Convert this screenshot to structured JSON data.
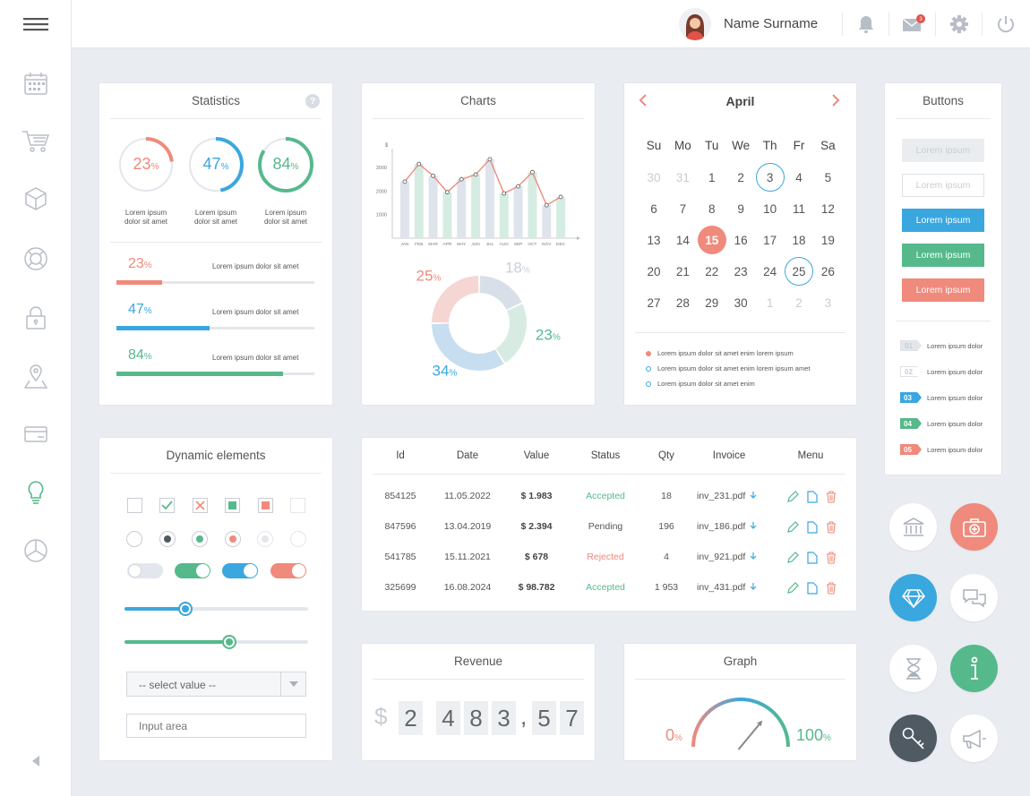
{
  "header": {
    "user_name": "Name Surname",
    "mail_count": "3"
  },
  "statistics": {
    "title": "Statistics",
    "help": "?",
    "rings": [
      {
        "value": "23",
        "unit": "%",
        "fraction": 0.23,
        "caption": "Lorem ipsum\ndolor sit amet",
        "color": "#ef8a7c"
      },
      {
        "value": "47",
        "unit": "%",
        "fraction": 0.47,
        "caption": "Lorem ipsum\ndolor sit amet",
        "color": "#3aa7df"
      },
      {
        "value": "84",
        "unit": "%",
        "fraction": 0.84,
        "caption": "Lorem ipsum\ndolor sit amet",
        "color": "#56b98c"
      }
    ],
    "bars": [
      {
        "value": "23",
        "unit": "%",
        "fraction": 0.23,
        "label": "Lorem ipsum dolor sit amet",
        "color": "#ef8a7c"
      },
      {
        "value": "47",
        "unit": "%",
        "fraction": 0.47,
        "label": "Lorem ipsum dolor sit amet",
        "color": "#3aa7df"
      },
      {
        "value": "84",
        "unit": "%",
        "fraction": 0.84,
        "label": "Lorem ipsum dolor sit amet",
        "color": "#56b98c"
      }
    ]
  },
  "charts": {
    "title": "Charts"
  },
  "chart_data": [
    {
      "type": "bar",
      "ylabel": "$",
      "categories": [
        "JAN",
        "FEB",
        "MAR",
        "APR",
        "MAY",
        "JUN",
        "JUL",
        "AUG",
        "SEP",
        "OCT",
        "NOV",
        "DEC"
      ],
      "yticks": [
        "1000",
        "2000",
        "3000"
      ],
      "ylim": [
        0,
        3800
      ],
      "series": [
        {
          "values": [
            2400,
            3150,
            2650,
            1950,
            2500,
            2700,
            3350,
            1900,
            2200,
            2800,
            1400,
            1750
          ]
        }
      ],
      "bar_colors": [
        "#dfe4ec",
        "#d5ece2",
        "#dfe4ec",
        "#d5ece2",
        "#dfe4ec",
        "#d5ece2",
        "#dfe4ec",
        "#d5ece2",
        "#dfe4ec",
        "#d5ece2",
        "#dfe4ec",
        "#d5ece2"
      ],
      "line_color": "#ef8a7c"
    },
    {
      "type": "pie",
      "slices": [
        {
          "value": 18,
          "color": "#d9dfe8",
          "text_color": "#c8d0db"
        },
        {
          "value": 23,
          "color": "#d7ebe3",
          "text_color": "#56b98c"
        },
        {
          "value": 34,
          "color": "#c7def0",
          "text_color": "#3aa7df"
        },
        {
          "value": 25,
          "color": "#f6d6d2",
          "text_color": "#ef8a7c"
        }
      ],
      "labels": [
        "18",
        "23",
        "34",
        "25"
      ],
      "unit": "%"
    }
  ],
  "calendar": {
    "month": "April",
    "weekdays": [
      "Su",
      "Mo",
      "Tu",
      "We",
      "Th",
      "Fr",
      "Sa"
    ],
    "days": [
      [
        "30",
        "31",
        "1",
        "2",
        "3",
        "4",
        "5"
      ],
      [
        "6",
        "7",
        "8",
        "9",
        "10",
        "11",
        "12"
      ],
      [
        "13",
        "14",
        "15",
        "16",
        "17",
        "18",
        "19"
      ],
      [
        "20",
        "21",
        "22",
        "23",
        "24",
        "25",
        "26"
      ],
      [
        "27",
        "28",
        "29",
        "30",
        "1",
        "2",
        "3"
      ]
    ],
    "legend": [
      "Lorem ipsum dolor sit amet enim lorem ipsum",
      "Lorem ipsum dolor sit amet enim lorem ipsum amet",
      "Lorem ipsum dolor sit amet enim"
    ]
  },
  "buttons": {
    "title": "Buttons",
    "items": [
      "Lorem ipsum",
      "Lorem ipsum",
      "Lorem ipsum",
      "Lorem ipsum",
      "Lorem ipsum"
    ],
    "tags": [
      {
        "num": "01",
        "text": "Lorem ipsum dolor",
        "color": "#e3e6ea"
      },
      {
        "num": "02",
        "text": "Lorem ipsum dolor",
        "color": "#ffffff"
      },
      {
        "num": "03",
        "text": "Lorem ipsum dolor",
        "color": "#3aa7df"
      },
      {
        "num": "04",
        "text": "Lorem ipsum dolor",
        "color": "#56b98c"
      },
      {
        "num": "05",
        "text": "Lorem ipsum dolor",
        "color": "#ef8a7c"
      }
    ]
  },
  "dynamic": {
    "title": "Dynamic elements",
    "slider1": 0.33,
    "slider2": 0.57,
    "select_value": "-- select value --",
    "input_placeholder": "Input area"
  },
  "table": {
    "headers": [
      "Id",
      "Date",
      "Value",
      "Status",
      "Qty",
      "Invoice",
      "Menu"
    ],
    "rows": [
      {
        "id": "854125",
        "date": "11.05.2022",
        "value": "$ 1.983",
        "status": "Accepted",
        "qty": "18",
        "invoice": "inv_231.pdf"
      },
      {
        "id": "847596",
        "date": "13.04.2019",
        "value": "$ 2.394",
        "status": "Pending",
        "qty": "196",
        "invoice": "inv_186.pdf"
      },
      {
        "id": "541785",
        "date": "15.11.2021",
        "value": "$ 678",
        "status": "Rejected",
        "qty": "4",
        "invoice": "inv_921.pdf"
      },
      {
        "id": "325699",
        "date": "16.08.2024",
        "value": "$ 98.782",
        "status": "Accepted",
        "qty": "1 953",
        "invoice": "inv_431.pdf"
      }
    ]
  },
  "revenue": {
    "title": "Revenue",
    "currency": "$",
    "digits": [
      "2",
      "4",
      "8",
      "3",
      ",",
      "5",
      "7"
    ]
  },
  "graph": {
    "title": "Graph",
    "min_label": "0",
    "max_label": "100",
    "unit": "%",
    "value": 0.72
  },
  "colors": {
    "red": "#ef8a7c",
    "blue": "#3aa7df",
    "green": "#56b98c",
    "dark": "#4f5a63"
  }
}
